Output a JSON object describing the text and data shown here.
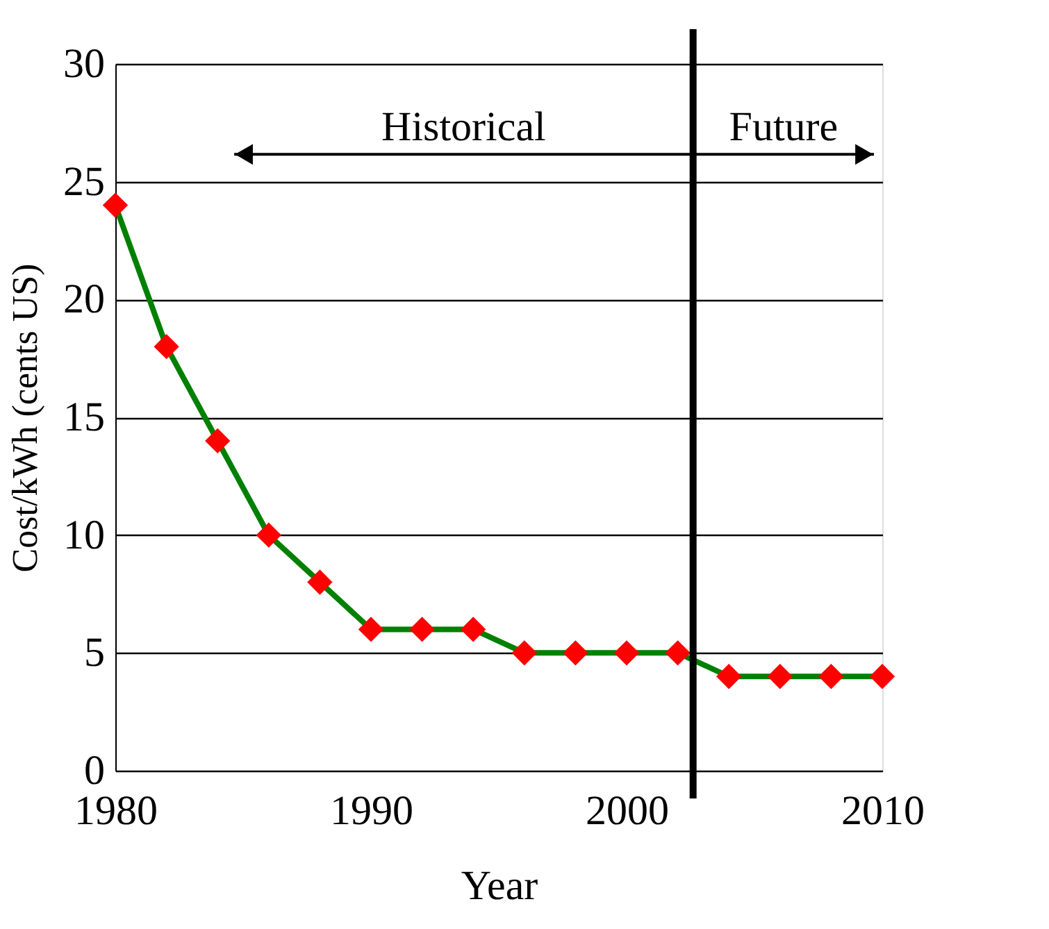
{
  "chart_data": {
    "type": "line",
    "xlabel": "Year",
    "ylabel": "Cost/kWh (cents US)",
    "x": [
      1980,
      1982,
      1984,
      1986,
      1988,
      1990,
      1992,
      1994,
      1996,
      1998,
      2000,
      2002,
      2004,
      2006,
      2008,
      2010
    ],
    "series": [
      {
        "color": "#008000",
        "values": [
          24,
          18,
          14,
          10,
          8,
          6,
          6,
          6,
          5,
          5,
          5,
          5,
          4,
          4,
          4,
          4
        ]
      }
    ],
    "marker": "diamond",
    "line_style": "solid",
    "xlim": [
      1980,
      2010
    ],
    "xticks": [
      1980,
      1990,
      2000,
      2010
    ],
    "ylim": [
      0,
      30
    ],
    "yticks": [
      0,
      5,
      10,
      15,
      20,
      25,
      30
    ],
    "grid": "y",
    "ref_lines": [
      {
        "axis": "x",
        "value": 2002.6,
        "color": "#000000"
      }
    ],
    "annotations": [
      "Historical",
      "Future"
    ]
  }
}
